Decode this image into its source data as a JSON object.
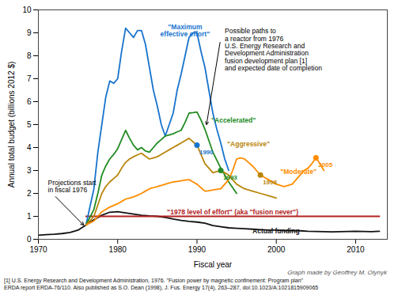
{
  "chart_data": {
    "type": "line",
    "x_label": "Fiscal year",
    "y_label": "Annual total budget (billions 2012 $)",
    "xlim": [
      1970,
      2014
    ],
    "ylim": [
      0,
      10
    ],
    "xticks": [
      1970,
      1980,
      1990,
      2000,
      2010
    ],
    "yticks": [
      0,
      1,
      2,
      3,
      4,
      5,
      6,
      7,
      8,
      9,
      10
    ],
    "grid": false,
    "series": [
      {
        "color": "#111111",
        "x": [
          1970,
          1971,
          1972,
          1973,
          1974,
          1975,
          1976,
          1977,
          1978,
          1979,
          1980,
          1981,
          1982,
          1983,
          1984,
          1985,
          1986,
          1987,
          1988,
          1989,
          1990,
          1991,
          1992,
          1993,
          1994,
          1995,
          1996,
          1997,
          1998,
          1999,
          2000,
          2001,
          2002,
          2003,
          2004,
          2005,
          2006,
          2007,
          2008,
          2009,
          2010,
          2011,
          2012,
          2013
        ],
        "values": [
          0.18,
          0.2,
          0.22,
          0.25,
          0.3,
          0.4,
          0.62,
          0.85,
          1.05,
          1.18,
          1.2,
          1.15,
          1.1,
          1.05,
          1.02,
          1.0,
          0.95,
          0.88,
          0.82,
          0.78,
          0.75,
          0.7,
          0.6,
          0.55,
          0.5,
          0.48,
          0.46,
          0.44,
          0.42,
          0.4,
          0.4,
          0.38,
          0.38,
          0.37,
          0.35,
          0.34,
          0.33,
          0.32,
          0.33,
          0.34,
          0.35,
          0.34,
          0.33,
          0.35
        ]
      },
      {
        "color": "#b22222",
        "x": [
          1976,
          2013
        ],
        "values": [
          1.0,
          1.0
        ]
      },
      {
        "color": "#1874CD",
        "x": [
          1976,
          1977,
          1977.5,
          1978,
          1978.5,
          1979,
          1979.5,
          1980,
          1980.5,
          1981,
          1981.5,
          1982,
          1982.5,
          1983,
          1983.5,
          1984,
          1984.5,
          1985,
          1985.5,
          1986,
          1986.5,
          1987,
          1987.5,
          1988,
          1988.5,
          1989,
          1989.5,
          1990,
          1990.5,
          1991,
          1991.5,
          1992,
          1992.5,
          1993,
          1993.5,
          1994
        ],
        "values": [
          0.62,
          2.2,
          3.8,
          5.0,
          6.2,
          6.9,
          6.8,
          7.0,
          8.2,
          9.2,
          9.0,
          8.8,
          9.1,
          9.1,
          8.5,
          7.5,
          6.5,
          5.8,
          5.0,
          4.5,
          5.0,
          5.5,
          6.5,
          7.2,
          8.0,
          8.8,
          9.0,
          9.0,
          8.2,
          7.5,
          6.5,
          5.5,
          4.8,
          4.2,
          3.5,
          3.0
        ]
      },
      {
        "color": "#228B22",
        "x": [
          1976,
          1977,
          1977.5,
          1978,
          1978.5,
          1979,
          1979.5,
          1980,
          1980.5,
          1981,
          1981.5,
          1982,
          1982.5,
          1983,
          1983.5,
          1984,
          1984.5,
          1985,
          1985.5,
          1986,
          1986.5,
          1987,
          1987.5,
          1988,
          1988.5,
          1989,
          1989.5,
          1990,
          1990.5,
          1991,
          1991.5,
          1992,
          1992.5,
          1993,
          1993.5,
          1994,
          1994.5,
          1995
        ],
        "values": [
          0.62,
          1.3,
          2.0,
          2.8,
          3.2,
          3.5,
          3.7,
          3.95,
          4.35,
          4.75,
          4.4,
          4.1,
          3.9,
          4.0,
          3.85,
          3.8,
          4.0,
          4.2,
          4.35,
          4.5,
          4.55,
          4.6,
          4.68,
          4.75,
          5.1,
          5.5,
          5.52,
          5.55,
          5.2,
          4.8,
          4.3,
          3.8,
          3.45,
          3.1,
          2.8,
          2.5,
          2.25,
          2.0
        ]
      },
      {
        "color": "#B8860B",
        "x": [
          1976,
          1977,
          1977.5,
          1978,
          1978.5,
          1979,
          1979.5,
          1980,
          1980.5,
          1981,
          1981.5,
          1982,
          1982.5,
          1983,
          1983.5,
          1984,
          1984.5,
          1985,
          1985.5,
          1986,
          1986.5,
          1987,
          1987.5,
          1988,
          1988.5,
          1989,
          1989.5,
          1990,
          1990.5,
          1991,
          1991.5,
          1992,
          1992.5,
          1993,
          1993.5,
          1994,
          1994.5,
          1995,
          1996,
          1997,
          1998,
          1999,
          2000
        ],
        "values": [
          0.62,
          1.0,
          1.5,
          2.0,
          2.3,
          2.5,
          2.65,
          2.8,
          3.1,
          3.35,
          3.5,
          3.6,
          3.68,
          3.75,
          3.62,
          3.5,
          3.55,
          3.6,
          3.7,
          3.8,
          3.9,
          4.0,
          4.1,
          4.2,
          4.3,
          4.4,
          4.25,
          4.1,
          3.7,
          3.3,
          3.1,
          2.9,
          2.95,
          3.0,
          2.9,
          2.8,
          2.6,
          2.4,
          2.2,
          2.1,
          2.0,
          1.9,
          1.8
        ]
      },
      {
        "color": "#FF8C00",
        "x": [
          1976,
          1977,
          1977.5,
          1978,
          1978.5,
          1979,
          1979.5,
          1980,
          1980.5,
          1981,
          1981.5,
          1982,
          1982.5,
          1983,
          1983.5,
          1984,
          1984.5,
          1985,
          1985.5,
          1986,
          1986.5,
          1987,
          1987.5,
          1988,
          1988.5,
          1989,
          1989.5,
          1990,
          1990.5,
          1991,
          1991.5,
          1992,
          1992.5,
          1993,
          1993.5,
          1994,
          1994.5,
          1995,
          1995.5,
          1996,
          1996.5,
          1997,
          1997.5,
          1998,
          1998.5,
          1999,
          1999.5,
          2000,
          2000.5,
          2001,
          2001.5,
          2002,
          2002.5,
          2003,
          2003.5,
          2004,
          2004.5,
          2005,
          2005.5,
          2006
        ],
        "values": [
          0.62,
          0.8,
          1.0,
          1.2,
          1.3,
          1.4,
          1.48,
          1.55,
          1.65,
          1.75,
          1.8,
          1.85,
          1.92,
          2.0,
          2.1,
          2.2,
          2.25,
          2.3,
          2.35,
          2.4,
          2.45,
          2.5,
          2.52,
          2.55,
          2.58,
          2.6,
          2.5,
          2.4,
          2.25,
          2.1,
          2.12,
          2.15,
          2.18,
          2.2,
          2.4,
          2.6,
          3.0,
          3.5,
          3.55,
          3.5,
          3.35,
          3.2,
          3.0,
          2.8,
          2.7,
          2.6,
          2.5,
          2.4,
          2.35,
          2.3,
          2.35,
          2.4,
          2.6,
          2.8,
          3.0,
          3.1,
          3.3,
          3.55,
          3.3,
          3.0
        ]
      }
    ],
    "dots": [
      {
        "x": 1990,
        "y": 4.1,
        "color": "#1874CD",
        "label": "1990"
      },
      {
        "x": 1993,
        "y": 3.0,
        "color": "#228B22",
        "label": "1993"
      },
      {
        "x": 1998,
        "y": 2.8,
        "color": "#B8860B",
        "label": "1998"
      },
      {
        "x": 2005,
        "y": 3.55,
        "color": "#FF8C00",
        "label": "2005"
      }
    ],
    "annotations": [
      {
        "text": "\"Maximum\neffective effort\"",
        "x": 1988.5,
        "y": 8.85,
        "color": "#1874CD",
        "anchor": "middle bottom"
      },
      {
        "text": "\"Accelerated\"",
        "x": 1991.8,
        "y": 5.1,
        "color": "#228B22",
        "anchor": "start bottom"
      },
      {
        "text": "\"Aggressive\"",
        "x": 1993.8,
        "y": 4.05,
        "color": "#B8860B",
        "anchor": "start bottom"
      },
      {
        "text": "\"Moderate\"",
        "x": 2000.5,
        "y": 2.85,
        "color": "#FF8C00",
        "anchor": "start bottom"
      },
      {
        "text": "\"1978 level of effort\" (aka \"fusion never\")",
        "x": 1994.5,
        "y": 1.07,
        "color": "#b22222",
        "anchor": "middle bottom"
      },
      {
        "text": "Actual funding",
        "x": 1997,
        "y": 0.26,
        "color": "#111111",
        "anchor": "start bottom"
      },
      {
        "text": "Projections start\nin fiscal 1976",
        "x": 1971.2,
        "y": 2.3,
        "anchor": "start middle",
        "arrow_to": [
          1976,
          0.62
        ]
      },
      {
        "text": "Possible paths to\na reactor from 1976\nU.S. Energy Research and\nDevelopment Administration\nfusion development plan [1]\nand expected date of completion",
        "x": 1993.5,
        "y": 9.2,
        "anchor": "start top",
        "arrow_to": [
          1991.5,
          5.0
        ]
      }
    ],
    "credit": "Graph made by Geoffrey M. Olynyk",
    "footnotes": [
      "[1] U.S. Energy Research and Development Administration, 1976. \"Fusion power by magnetic confinement: Program plan\"",
      "ERDA report ERDA-76/110. Also published as S.O. Dean (1998), J. Fus. Energy 17(4), 263–287, doi:10.1023/A:1021815909065"
    ]
  }
}
